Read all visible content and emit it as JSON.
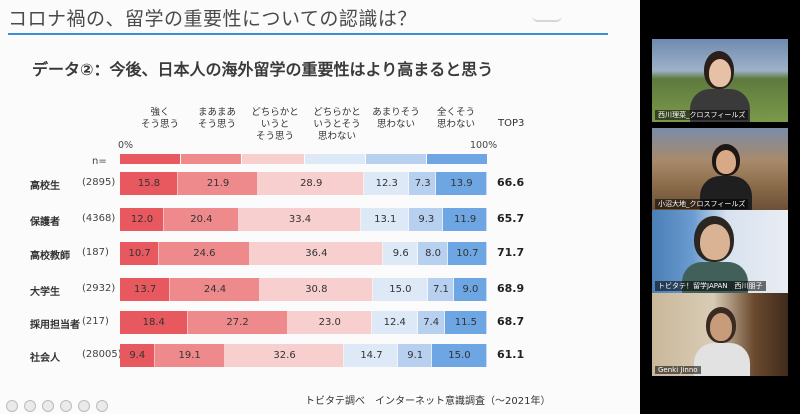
{
  "slide": {
    "title": "コロナ禍の、留学の重要性についての認識は？",
    "subtitle": "データ②：今後、日本人の海外留学の重要性はより高まると思う",
    "columns": [
      "強く\nそう思う",
      "まあまあ\nそう思う",
      "どちらかと\nいうと\nそう思う",
      "どちらかと\nいうとそう\n思わない",
      "あまりそう\n思わない",
      "全くそう\n思わない"
    ],
    "top3_label": "TOP3",
    "axis_start": "0%",
    "axis_end": "100%",
    "n_label": "n=",
    "colors": [
      "#e8585f",
      "#ef8a8c",
      "#f8cfcf",
      "#dde9f7",
      "#b7d0ef",
      "#6ea6e3"
    ],
    "rows": [
      {
        "label": "高校生",
        "n": "(2895)",
        "values": [
          15.8,
          21.9,
          28.9,
          0,
          12.3,
          7.3,
          13.9
        ],
        "value_labels": [
          "15.8",
          "21.9",
          "28.9",
          "",
          "12.3",
          "7.3",
          "13.9"
        ],
        "top3": "66.6"
      },
      {
        "label": "保護者",
        "n": "(4368)",
        "values": [
          12.0,
          20.4,
          33.4,
          0,
          13.1,
          9.3,
          11.9
        ],
        "value_labels": [
          "12.0",
          "20.4",
          "33.4",
          "",
          "13.1",
          "9.3",
          "11.9"
        ],
        "top3": "65.7"
      },
      {
        "label": "高校教師",
        "n": "(187)",
        "values": [
          10.7,
          24.6,
          36.4,
          0,
          9.6,
          8.0,
          10.7
        ],
        "value_labels": [
          "10.7",
          "24.6",
          "36.4",
          "",
          "9.6",
          "8.0",
          "10.7"
        ],
        "top3": "71.7"
      },
      {
        "label": "大学生",
        "n": "(2932)",
        "values": [
          13.7,
          24.4,
          30.8,
          0,
          15.0,
          7.1,
          9.0
        ],
        "value_labels": [
          "13.7",
          "24.4",
          "30.8",
          "",
          "15.0",
          "7.1",
          "9.0"
        ],
        "top3": "68.9"
      },
      {
        "label": "採用担当者",
        "n": "(217)",
        "values": [
          18.4,
          27.2,
          23.0,
          0,
          12.4,
          7.4,
          11.5
        ],
        "value_labels": [
          "18.4",
          "27.2",
          "23.0",
          "",
          "12.4",
          "7.4",
          "11.5"
        ],
        "top3": "68.7"
      },
      {
        "label": "社会人",
        "n": "(28005)",
        "values": [
          9.4,
          19.1,
          32.6,
          0,
          14.7,
          9.1,
          15.0
        ],
        "value_labels": [
          "9.4",
          "19.1",
          "32.6",
          "",
          "14.7",
          "9.1",
          "15.0"
        ],
        "top3": "61.1"
      }
    ],
    "source": "トビタテ調べ　インターネット意識調査（〜2021年）"
  },
  "participants": [
    {
      "name": "西川理菜_クロスフィールズ"
    },
    {
      "name": "小沼大地_クロスフィールズ"
    },
    {
      "name": "トビタテ！留学JAPAN　西川朋子"
    },
    {
      "name": "Genki Jinno"
    }
  ]
}
